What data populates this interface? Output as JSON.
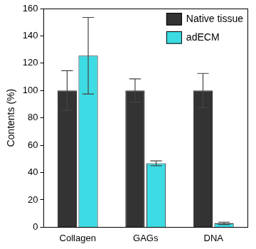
{
  "chart_data": {
    "type": "bar",
    "categories": [
      "Collagen",
      "GAGs",
      "DNA"
    ],
    "y_label": "Contents (%)",
    "series": [
      {
        "name": "Native tissue",
        "color": "#333333",
        "values": [
          100,
          100,
          100
        ],
        "errors": [
          14.5,
          8.5,
          12.5
        ]
      },
      {
        "name": "adECM",
        "color": "#3ddbe3",
        "values": [
          125.5,
          46.8,
          2.8
        ],
        "errors": [
          28,
          1.8,
          0.9
        ]
      }
    ],
    "ylim": [
      0,
      160
    ],
    "yticks": [
      0,
      20,
      40,
      60,
      80,
      100,
      120,
      140,
      160
    ],
    "grid": false,
    "legend": "upper right"
  }
}
